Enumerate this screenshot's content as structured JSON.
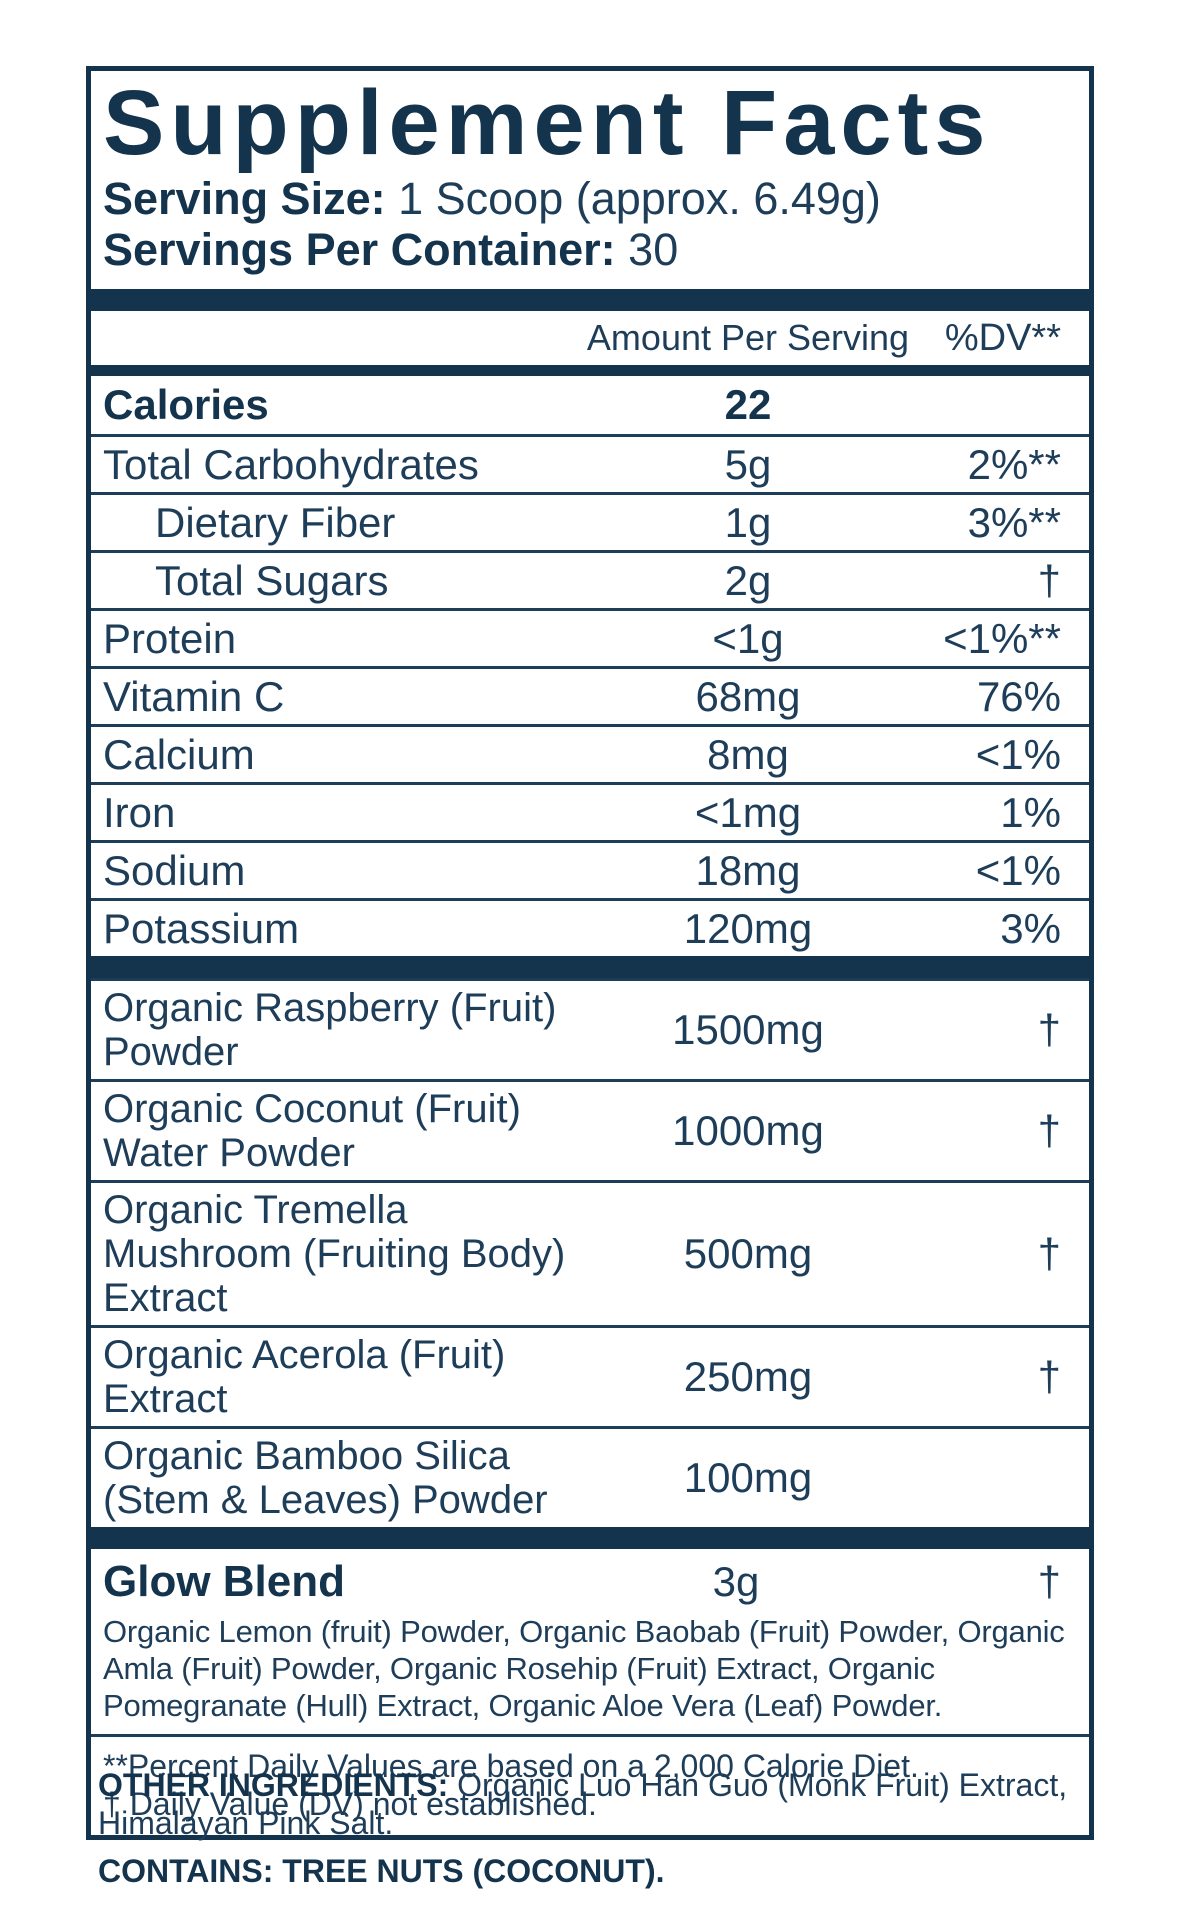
{
  "label": {
    "title": "Supplement Facts",
    "serving_size_label": "Serving Size:",
    "serving_size_value": "1 Scoop (approx. 6.49g)",
    "servings_label": "Servings Per Container:",
    "servings_value": "30",
    "columns": {
      "amount": "Amount Per Serving",
      "dv": "%DV**"
    },
    "nutrients": [
      {
        "name": "Calories",
        "amount": "22",
        "dv": ""
      },
      {
        "name": "Total Carbohydrates",
        "amount": "5g",
        "dv": "2%**"
      },
      {
        "name": "Dietary Fiber",
        "amount": "1g",
        "dv": "3%**"
      },
      {
        "name": "Total Sugars",
        "amount": "2g",
        "dv": "†"
      },
      {
        "name": "Protein",
        "amount": "<1g",
        "dv": "<1%**"
      },
      {
        "name": "Vitamin C",
        "amount": "68mg",
        "dv": "76%"
      },
      {
        "name": "Calcium",
        "amount": "8mg",
        "dv": "<1%"
      },
      {
        "name": "Iron",
        "amount": "<1mg",
        "dv": "1%"
      },
      {
        "name": "Sodium",
        "amount": "18mg",
        "dv": "<1%"
      },
      {
        "name": "Potassium",
        "amount": "120mg",
        "dv": "3%"
      }
    ],
    "ingredients": [
      {
        "name": "Organic Raspberry (Fruit) Powder",
        "amount": "1500mg",
        "dv": "†"
      },
      {
        "name": "Organic Coconut (Fruit) Water Powder",
        "amount": "1000mg",
        "dv": "†"
      },
      {
        "name": "Organic Tremella Mushroom (Fruiting Body) Extract",
        "amount": "500mg",
        "dv": "†"
      },
      {
        "name": "Organic Acerola (Fruit) Extract",
        "amount": "250mg",
        "dv": "†"
      },
      {
        "name": "Organic Bamboo Silica (Stem & Leaves) Powder",
        "amount": "100mg",
        "dv": ""
      }
    ],
    "blend": {
      "name": "Glow Blend",
      "amount": "3g",
      "dv": "†",
      "description": "Organic Lemon (fruit) Powder, Organic Baobab (Fruit) Powder, Organic Amla (Fruit) Powder, Organic Rosehip (Fruit) Extract, Organic Pomegranate (Hull) Extract, Organic Aloe Vera (Leaf) Powder."
    },
    "footnotes": [
      "**Percent Daily Values are based on a 2,000 Calorie Diet.",
      "† Daily Value (DV) not established."
    ],
    "other_ingredients_label": "OTHER INGREDIENTS:",
    "other_ingredients_value": "Organic Luo Han Guo (Monk Fruit) Extract, Himalayan Pink Salt.",
    "contains": "CONTAINS: TREE NUTS (COCONUT).",
    "colors": {
      "navy": "#14334c",
      "text": "#1e3d58"
    }
  }
}
